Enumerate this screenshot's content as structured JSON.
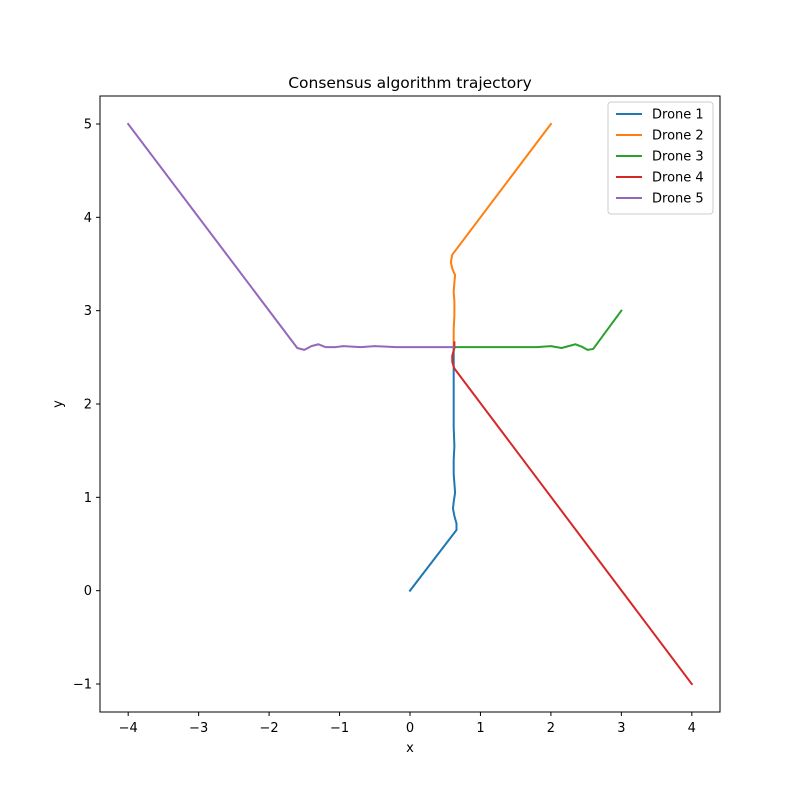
{
  "chart_data": {
    "type": "line",
    "title": "Consensus algorithm trajectory",
    "xlabel": "x",
    "ylabel": "y",
    "xlim": [
      -4.4,
      4.4
    ],
    "ylim": [
      -1.3,
      5.3
    ],
    "xticks": [
      -4,
      -3,
      -2,
      -1,
      0,
      1,
      2,
      3,
      4
    ],
    "xtick_labels": [
      "−4",
      "−3",
      "−2",
      "−1",
      "0",
      "1",
      "2",
      "3",
      "4"
    ],
    "yticks": [
      -1,
      0,
      1,
      2,
      3,
      4,
      5
    ],
    "ytick_labels": [
      "−1",
      "0",
      "1",
      "2",
      "3",
      "4",
      "5"
    ],
    "grid": false,
    "legend": {
      "position": "top-right"
    },
    "series": [
      {
        "name": "Drone 1",
        "color": "#1f77b4",
        "points": [
          [
            0,
            0
          ],
          [
            0.66,
            0.65
          ],
          [
            0.66,
            0.72
          ],
          [
            0.63,
            0.8
          ],
          [
            0.61,
            0.88
          ],
          [
            0.62,
            0.95
          ],
          [
            0.64,
            1.05
          ],
          [
            0.63,
            1.15
          ],
          [
            0.62,
            1.25
          ],
          [
            0.62,
            1.4
          ],
          [
            0.63,
            1.55
          ],
          [
            0.62,
            1.75
          ],
          [
            0.62,
            2.0
          ],
          [
            0.62,
            2.3
          ],
          [
            0.62,
            2.5
          ],
          [
            0.62,
            2.6
          ]
        ]
      },
      {
        "name": "Drone 2",
        "color": "#ff7f0e",
        "points": [
          [
            2,
            5
          ],
          [
            0.6,
            3.6
          ],
          [
            0.58,
            3.52
          ],
          [
            0.6,
            3.45
          ],
          [
            0.64,
            3.38
          ],
          [
            0.63,
            3.3
          ],
          [
            0.62,
            3.2
          ],
          [
            0.63,
            3.1
          ],
          [
            0.63,
            2.95
          ],
          [
            0.62,
            2.8
          ],
          [
            0.62,
            2.62
          ]
        ]
      },
      {
        "name": "Drone 3",
        "color": "#2ca02c",
        "points": [
          [
            3,
            3
          ],
          [
            2.6,
            2.59
          ],
          [
            2.52,
            2.58
          ],
          [
            2.45,
            2.61
          ],
          [
            2.35,
            2.64
          ],
          [
            2.25,
            2.62
          ],
          [
            2.15,
            2.6
          ],
          [
            2.0,
            2.62
          ],
          [
            1.8,
            2.61
          ],
          [
            1.5,
            2.61
          ],
          [
            1.0,
            2.61
          ],
          [
            0.62,
            2.61
          ]
        ]
      },
      {
        "name": "Drone 4",
        "color": "#d62728",
        "points": [
          [
            4,
            -1
          ],
          [
            0.63,
            2.38
          ],
          [
            0.6,
            2.45
          ],
          [
            0.6,
            2.52
          ],
          [
            0.63,
            2.6
          ],
          [
            0.63,
            2.66
          ]
        ]
      },
      {
        "name": "Drone 5",
        "color": "#9467bd",
        "points": [
          [
            -4,
            5
          ],
          [
            -1.6,
            2.6
          ],
          [
            -1.5,
            2.58
          ],
          [
            -1.4,
            2.62
          ],
          [
            -1.3,
            2.64
          ],
          [
            -1.2,
            2.61
          ],
          [
            -1.05,
            2.61
          ],
          [
            -0.95,
            2.62
          ],
          [
            -0.7,
            2.61
          ],
          [
            -0.5,
            2.62
          ],
          [
            -0.2,
            2.61
          ],
          [
            0.2,
            2.61
          ],
          [
            0.62,
            2.61
          ]
        ]
      }
    ]
  }
}
